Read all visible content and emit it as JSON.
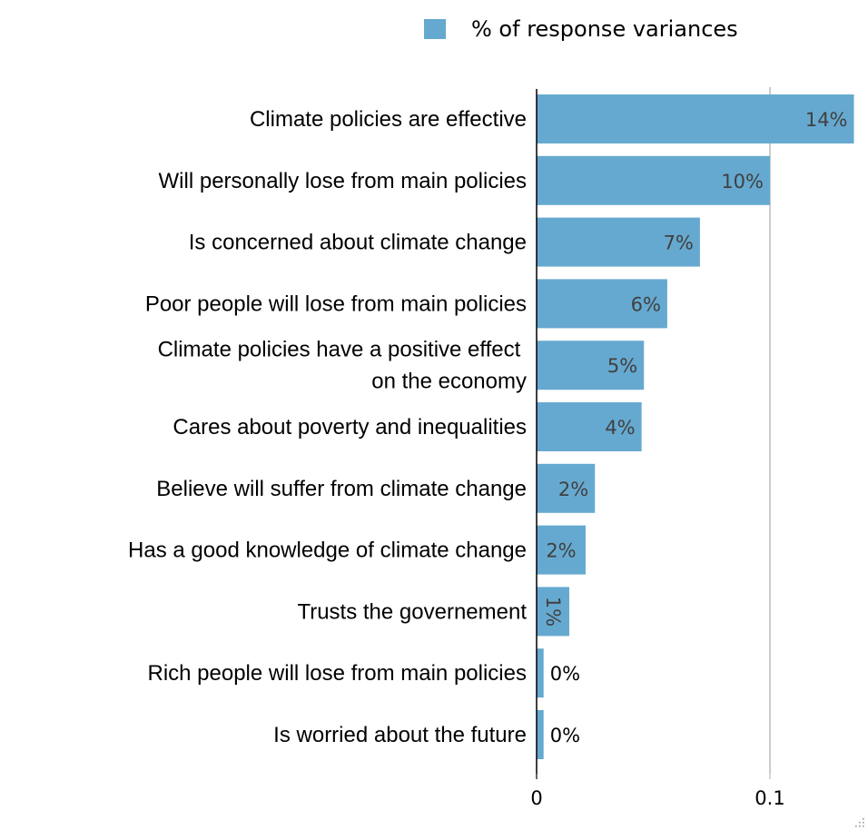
{
  "chart_data": {
    "type": "bar",
    "orientation": "horizontal",
    "legend": {
      "position": "top",
      "entries": [
        "% of response variances"
      ]
    },
    "series": [
      {
        "name": "% of response variances",
        "color": "#66a9d0",
        "values": [
          0.136,
          0.1,
          0.07,
          0.056,
          0.046,
          0.045,
          0.025,
          0.021,
          0.014,
          0.003,
          0.003
        ],
        "value_labels": [
          "14%",
          "10%",
          "7%",
          "6%",
          "5%",
          "4%",
          "2%",
          "2%",
          "1%",
          "0%",
          "0%"
        ]
      }
    ],
    "categories": [
      "Climate policies are effective",
      "Will personally lose from main policies",
      "Is concerned about climate change",
      "Poor people will lose from main policies",
      "Climate policies have a positive effect on the economy",
      "Cares about poverty and inequalities",
      "Believe will suffer from climate change",
      "Has a good knowledge of climate change",
      "Trusts the governement",
      "Rich people will lose from main policies",
      "Is worried about the future"
    ],
    "category_lines": [
      [
        "Climate policies are effective"
      ],
      [
        "Will personally lose from main policies"
      ],
      [
        "Is concerned about climate change"
      ],
      [
        "Poor people will lose from main policies"
      ],
      [
        "Climate policies have a positive effect ",
        "on the economy"
      ],
      [
        "Cares about poverty and inequalities"
      ],
      [
        "Believe will suffer from climate change"
      ],
      [
        "Has a good knowledge of climate change"
      ],
      [
        "Trusts the governement"
      ],
      [
        "Rich people will lose from main policies"
      ],
      [
        "Is worried about the future"
      ]
    ],
    "x_ticks": [
      {
        "value": 0,
        "label": "0"
      },
      {
        "value": 0.1,
        "label": "0.1"
      }
    ],
    "xlim": [
      0,
      0.137
    ],
    "grid": true,
    "axis_color": "#000000",
    "grid_color": "#bbbbbb"
  }
}
